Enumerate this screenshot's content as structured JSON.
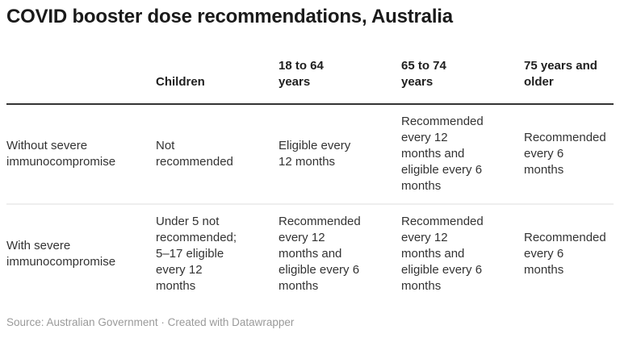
{
  "title": "COVID booster dose recommendations, Australia",
  "chart_data": {
    "type": "table",
    "columns": [
      "",
      "Children",
      "18 to 64\nyears",
      "65 to 74\nyears",
      "75 years and\nolder"
    ],
    "rows": [
      {
        "label": "Without severe\nimmunocompromise",
        "cells": [
          "Not\nrecommended",
          "Eligible every\n12 months",
          "Recommended\nevery 12\nmonths and\neligible every 6\nmonths",
          "Recommended\nevery 6 months"
        ]
      },
      {
        "label": "With severe\nimmunocompromise",
        "cells": [
          "Under 5 not\nrecommended;\n5–17 eligible\nevery 12\nmonths",
          "Recommended\nevery 12\nmonths and\neligible every 6\nmonths",
          "Recommended\nevery 12\nmonths and\neligible every 6\nmonths",
          "Recommended\nevery 6 months"
        ]
      }
    ]
  },
  "footer": {
    "source_line": "Source: Australian Government · Created with Datawrapper"
  },
  "colors": {
    "background": "#ffffff",
    "title_text": "#1a1a1a",
    "header_text": "#1f1f1f",
    "body_text": "#333333",
    "header_rule": "#333333",
    "row_divider": "#eeeeee",
    "footer_text": "#9a9a9a"
  }
}
